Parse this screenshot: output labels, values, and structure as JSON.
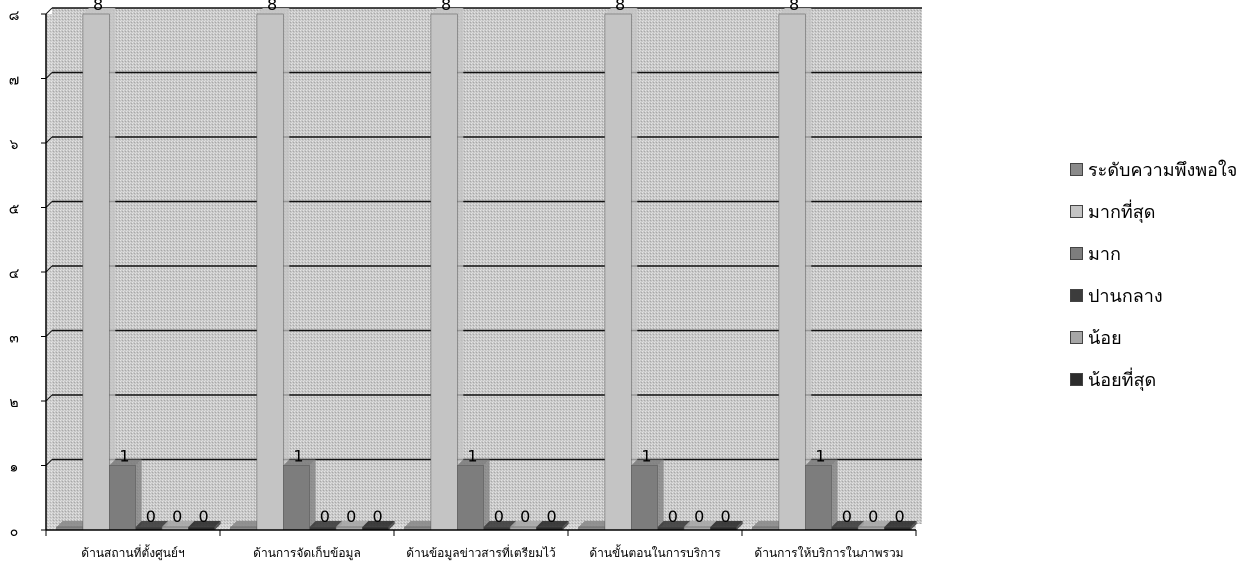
{
  "chart_data": {
    "type": "bar",
    "categories": [
      "ด้านสถานที่ตั้งศูนย์ฯ",
      "ด้านการจัดเก็บข้อมูล",
      "ด้านข้อมูลข่าวสารที่เตรียมไว้",
      "ด้านขั้นตอนในการบริการ",
      "ด้านการให้บริการในภาพรวม"
    ],
    "series": [
      {
        "name": "ระดับความพึงพอใจ",
        "values": [
          0,
          0,
          0,
          0,
          0
        ]
      },
      {
        "name": "มากที่สุด",
        "values": [
          8,
          8,
          8,
          8,
          8
        ]
      },
      {
        "name": "มาก",
        "values": [
          1,
          1,
          1,
          1,
          1
        ]
      },
      {
        "name": "ปานกลาง",
        "values": [
          0,
          0,
          0,
          0,
          0
        ]
      },
      {
        "name": "น้อย",
        "values": [
          0,
          0,
          0,
          0,
          0
        ]
      },
      {
        "name": "น้อยที่สุด",
        "values": [
          0,
          0,
          0,
          0,
          0
        ]
      }
    ],
    "y_ticks": [
      "๐",
      "๑",
      "๒",
      "๓",
      "๔",
      "๕",
      "๖",
      "๗",
      "๘"
    ],
    "ylim": [
      0,
      8
    ],
    "grid": true,
    "legend_position": "right",
    "colors": [
      "#8a8a8a",
      "#c4c4c4",
      "#7d7d7d",
      "#3c3c3c",
      "#a6a6a6",
      "#2c2c2c"
    ],
    "backdrop_color": "#cdcdcd",
    "gridline_color": "#111111"
  }
}
